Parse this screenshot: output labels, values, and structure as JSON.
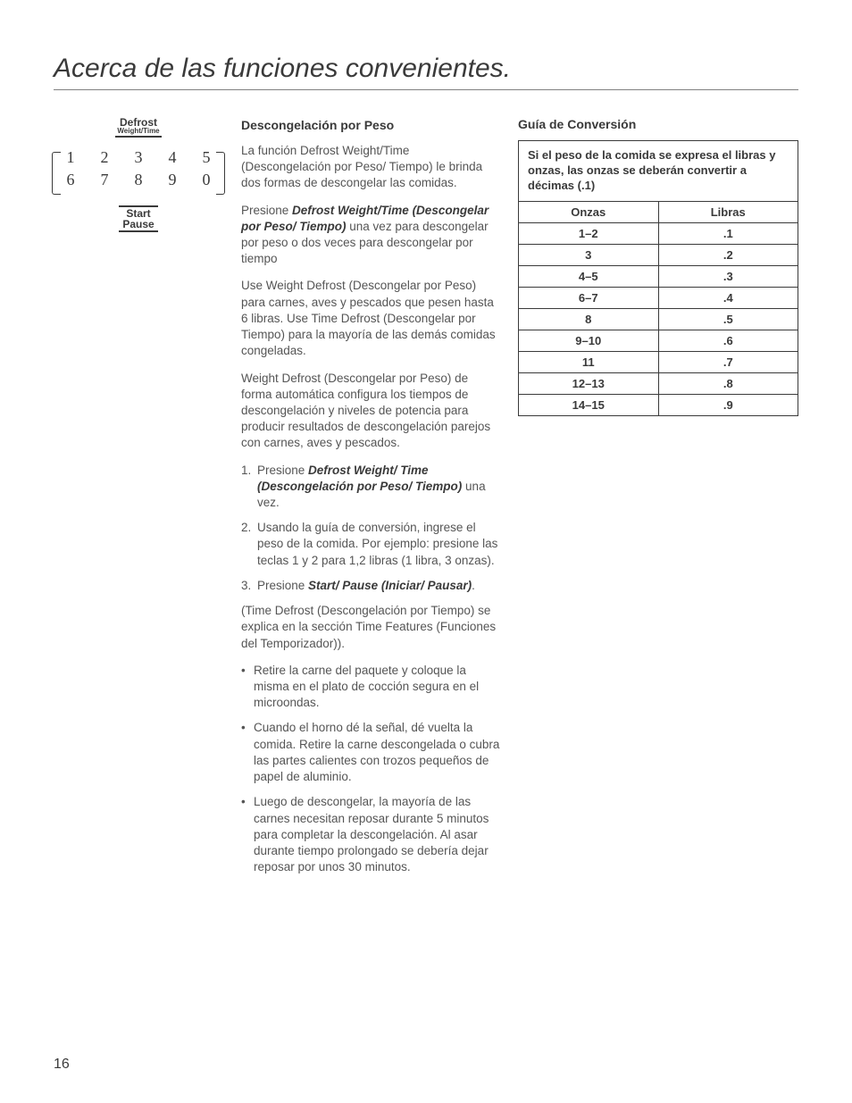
{
  "page": {
    "title": "Acerca de las funciones convenientes.",
    "number": "16"
  },
  "keypad": {
    "defrost_label_top": "Defrost",
    "defrost_label_sub": "Weight/Time",
    "row1": [
      "1",
      "2",
      "3",
      "4",
      "5"
    ],
    "row2": [
      "6",
      "7",
      "8",
      "9",
      "0"
    ],
    "start_top": "Start",
    "start_sub": "Pause"
  },
  "main": {
    "heading": "Descongelación por Peso",
    "p1": "La función Defrost Weight/Time (Descongelación por Peso/ Tiempo) le brinda dos formas de descongelar las comidas.",
    "p2_pre": "Presione ",
    "p2_strong": "Defrost Weight/Time (Descongelar por Peso/ Tiempo)",
    "p2_post": " una vez para descongelar por peso o dos veces para descongelar por tiempo",
    "p3": "Use Weight Defrost (Descongelar por Peso) para carnes, aves y pescados que pesen hasta 6 libras. Use Time Defrost (Descongelar por Tiempo) para la mayoría de las demás comidas congeladas.",
    "p4": "Weight Defrost (Descongelar por Peso) de forma automática configura los tiempos de descongelación y niveles de potencia para producir resultados de descongelación parejos con carnes, aves y pescados.",
    "step1_pre": "Presione ",
    "step1_strong": "Defrost Weight/ Time (Descongelación por Peso/ Tiempo)",
    "step1_post": " una vez.",
    "step2": "Usando la guía de conversión, ingrese el peso de la comida. Por ejemplo: presione las teclas 1 y 2 para 1,2 libras (1 libra, 3 onzas).",
    "step3_pre": "Presione ",
    "step3_strong": "Start/ Pause (Iniciar/ Pausar)",
    "step3_post": ".",
    "p5": "(Time Defrost (Descongelación por Tiempo) se explica en la sección Time Features (Funciones del Temporizador)).",
    "b1": "Retire la carne del paquete y coloque la misma en el plato de cocción segura en el microondas.",
    "b2": "Cuando el horno dé la señal, dé vuelta la comida. Retire la carne descongelada o cubra las partes calientes con trozos pequeños de papel de aluminio.",
    "b3": "Luego de descongelar, la mayoría de las carnes necesitan reposar durante 5 minutos para completar la descongelación. Al asar durante tiempo prolongado se debería dejar reposar por unos 30 minutos."
  },
  "conversion": {
    "heading": "Guía de Conversión",
    "note": "Si el peso de la comida se expresa el libras y onzas, las onzas se deberán convertir a décimas (.1)",
    "col_onzas": "Onzas",
    "col_libras": "Libras",
    "rows": [
      {
        "o": "1–2",
        "l": ".1"
      },
      {
        "o": "3",
        "l": ".2"
      },
      {
        "o": "4–5",
        "l": ".3"
      },
      {
        "o": "6–7",
        "l": ".4"
      },
      {
        "o": "8",
        "l": ".5"
      },
      {
        "o": "9–10",
        "l": ".6"
      },
      {
        "o": "11",
        "l": ".7"
      },
      {
        "o": "12–13",
        "l": ".8"
      },
      {
        "o": "14–15",
        "l": ".9"
      }
    ]
  }
}
